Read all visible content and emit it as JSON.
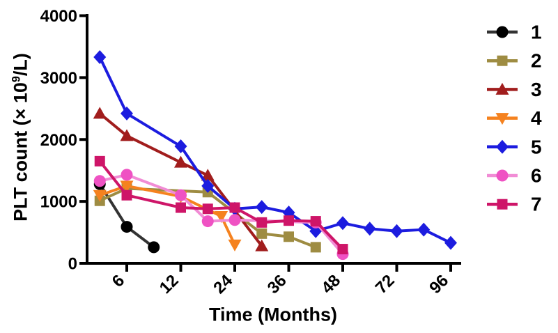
{
  "chart_data": {
    "type": "line",
    "title": "",
    "xlabel": "Time (Months)",
    "ylabel": "PLT count (× 10⁹/L)",
    "ylabel_parts": {
      "prefix": "PLT count (× 10",
      "sup": "9",
      "suffix": "/L)"
    },
    "ylim": [
      0,
      4000
    ],
    "yticks": [
      0,
      1000,
      2000,
      3000,
      4000
    ],
    "xticks": [
      6,
      12,
      24,
      36,
      48,
      72,
      96
    ],
    "x_axis_style": "nonlinear: labeled ticks are evenly spaced, tick labels rotated 45°",
    "grid": false,
    "legend_position": "right",
    "axis_color": "#000000",
    "series": [
      {
        "name": "1",
        "marker": "circle",
        "color": "#000000",
        "line_color": "#333333",
        "points": [
          [
            3,
            1280
          ],
          [
            6,
            590
          ],
          [
            9,
            260
          ]
        ]
      },
      {
        "name": "2",
        "marker": "square",
        "color": "#9e8c42",
        "line_color": "#9e8c42",
        "points": [
          [
            3,
            1010
          ],
          [
            6,
            1210
          ],
          [
            18,
            1150
          ],
          [
            30,
            480
          ],
          [
            36,
            430
          ],
          [
            42,
            260
          ]
        ]
      },
      {
        "name": "3",
        "marker": "triangle-up",
        "color": "#a11d1d",
        "line_color": "#a11d1d",
        "points": [
          [
            3,
            2420
          ],
          [
            6,
            2060
          ],
          [
            12,
            1630
          ],
          [
            18,
            1420
          ],
          [
            30,
            280
          ]
        ]
      },
      {
        "name": "4",
        "marker": "triangle-down",
        "color": "#f5821f",
        "line_color": "#f5821f",
        "points": [
          [
            3,
            1100
          ],
          [
            6,
            1250
          ],
          [
            12,
            1080
          ],
          [
            21,
            760
          ],
          [
            24,
            300
          ]
        ]
      },
      {
        "name": "5",
        "marker": "diamond",
        "color": "#1c1cdf",
        "line_color": "#1c1cdf",
        "points": [
          [
            3,
            3330
          ],
          [
            6,
            2420
          ],
          [
            12,
            1890
          ],
          [
            18,
            1250
          ],
          [
            24,
            880
          ],
          [
            30,
            910
          ],
          [
            36,
            820
          ],
          [
            42,
            520
          ],
          [
            48,
            650
          ],
          [
            60,
            560
          ],
          [
            72,
            520
          ],
          [
            84,
            545
          ],
          [
            96,
            330
          ]
        ]
      },
      {
        "name": "6",
        "marker": "circle",
        "color": "#ef52c3",
        "line_color": "#f18cd5",
        "points": [
          [
            3,
            1330
          ],
          [
            6,
            1430
          ],
          [
            12,
            1100
          ],
          [
            18,
            680
          ],
          [
            24,
            700
          ],
          [
            42,
            660
          ],
          [
            48,
            150
          ]
        ]
      },
      {
        "name": "7",
        "marker": "square",
        "color": "#ce1568",
        "line_color": "#ce1568",
        "points": [
          [
            3,
            1650
          ],
          [
            6,
            1100
          ],
          [
            12,
            900
          ],
          [
            18,
            880
          ],
          [
            24,
            900
          ],
          [
            30,
            660
          ],
          [
            36,
            690
          ],
          [
            42,
            680
          ],
          [
            48,
            230
          ]
        ]
      }
    ]
  }
}
